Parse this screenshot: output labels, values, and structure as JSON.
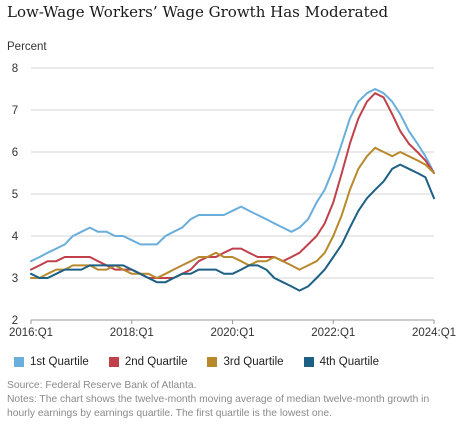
{
  "title": "Low-Wage Workers’ Wage Growth Has Moderated",
  "source": "Source: Federal Reserve Bank of Atlanta.",
  "notes": [
    "Notes: The chart shows the twelve-month moving average of median twelve-month growth in",
    "hourly earnings by earnings quartile. The first quartile is the lowest one."
  ],
  "chart_data": {
    "type": "line",
    "ylabel": "Percent",
    "xlabel": "",
    "ylim": [
      2,
      8
    ],
    "yticks": [
      2,
      3,
      4,
      5,
      6,
      7,
      8
    ],
    "xlim": [
      2016.0,
      2024.0
    ],
    "xtick_labels": [
      "2016:Q1",
      "2018:Q1",
      "2020:Q1",
      "2022:Q1",
      "2024:Q1"
    ],
    "xtick_values": [
      2016.0,
      2018.0,
      2020.0,
      2022.0,
      2024.0
    ],
    "grid": "horizontal",
    "legend_position": "bottom",
    "series": [
      {
        "name": "1st Quartile",
        "color": "#6aaedc",
        "points": [
          [
            2016.0,
            3.4
          ],
          [
            2016.17,
            3.5
          ],
          [
            2016.33,
            3.6
          ],
          [
            2016.5,
            3.7
          ],
          [
            2016.67,
            3.8
          ],
          [
            2016.83,
            4.0
          ],
          [
            2017.0,
            4.1
          ],
          [
            2017.17,
            4.2
          ],
          [
            2017.33,
            4.1
          ],
          [
            2017.5,
            4.1
          ],
          [
            2017.67,
            4.0
          ],
          [
            2017.83,
            4.0
          ],
          [
            2018.0,
            3.9
          ],
          [
            2018.17,
            3.8
          ],
          [
            2018.33,
            3.8
          ],
          [
            2018.5,
            3.8
          ],
          [
            2018.67,
            4.0
          ],
          [
            2018.83,
            4.1
          ],
          [
            2019.0,
            4.2
          ],
          [
            2019.17,
            4.4
          ],
          [
            2019.33,
            4.5
          ],
          [
            2019.5,
            4.5
          ],
          [
            2019.67,
            4.5
          ],
          [
            2019.83,
            4.5
          ],
          [
            2020.0,
            4.6
          ],
          [
            2020.17,
            4.7
          ],
          [
            2020.33,
            4.6
          ],
          [
            2020.5,
            4.5
          ],
          [
            2020.67,
            4.4
          ],
          [
            2020.83,
            4.3
          ],
          [
            2021.0,
            4.2
          ],
          [
            2021.17,
            4.1
          ],
          [
            2021.33,
            4.2
          ],
          [
            2021.5,
            4.4
          ],
          [
            2021.67,
            4.8
          ],
          [
            2021.83,
            5.1
          ],
          [
            2022.0,
            5.6
          ],
          [
            2022.17,
            6.2
          ],
          [
            2022.33,
            6.8
          ],
          [
            2022.5,
            7.2
          ],
          [
            2022.67,
            7.4
          ],
          [
            2022.83,
            7.5
          ],
          [
            2023.0,
            7.4
          ],
          [
            2023.17,
            7.2
          ],
          [
            2023.33,
            6.9
          ],
          [
            2023.5,
            6.5
          ],
          [
            2023.67,
            6.2
          ],
          [
            2023.83,
            5.9
          ],
          [
            2024.0,
            5.5
          ]
        ]
      },
      {
        "name": "2nd Quartile",
        "color": "#c0414a",
        "points": [
          [
            2016.0,
            3.2
          ],
          [
            2016.17,
            3.3
          ],
          [
            2016.33,
            3.4
          ],
          [
            2016.5,
            3.4
          ],
          [
            2016.67,
            3.5
          ],
          [
            2016.83,
            3.5
          ],
          [
            2017.0,
            3.5
          ],
          [
            2017.17,
            3.5
          ],
          [
            2017.33,
            3.4
          ],
          [
            2017.5,
            3.3
          ],
          [
            2017.67,
            3.2
          ],
          [
            2017.83,
            3.2
          ],
          [
            2018.0,
            3.2
          ],
          [
            2018.17,
            3.1
          ],
          [
            2018.33,
            3.0
          ],
          [
            2018.5,
            3.0
          ],
          [
            2018.67,
            3.0
          ],
          [
            2018.83,
            3.0
          ],
          [
            2019.0,
            3.1
          ],
          [
            2019.17,
            3.2
          ],
          [
            2019.33,
            3.4
          ],
          [
            2019.5,
            3.5
          ],
          [
            2019.67,
            3.5
          ],
          [
            2019.83,
            3.6
          ],
          [
            2020.0,
            3.7
          ],
          [
            2020.17,
            3.7
          ],
          [
            2020.33,
            3.6
          ],
          [
            2020.5,
            3.5
          ],
          [
            2020.67,
            3.5
          ],
          [
            2020.83,
            3.5
          ],
          [
            2021.0,
            3.4
          ],
          [
            2021.17,
            3.5
          ],
          [
            2021.33,
            3.6
          ],
          [
            2021.5,
            3.8
          ],
          [
            2021.67,
            4.0
          ],
          [
            2021.83,
            4.3
          ],
          [
            2022.0,
            4.8
          ],
          [
            2022.17,
            5.5
          ],
          [
            2022.33,
            6.2
          ],
          [
            2022.5,
            6.8
          ],
          [
            2022.67,
            7.2
          ],
          [
            2022.83,
            7.4
          ],
          [
            2023.0,
            7.3
          ],
          [
            2023.17,
            6.9
          ],
          [
            2023.33,
            6.5
          ],
          [
            2023.5,
            6.2
          ],
          [
            2023.67,
            6.0
          ],
          [
            2023.83,
            5.8
          ],
          [
            2024.0,
            5.5
          ]
        ]
      },
      {
        "name": "3rd Quartile",
        "color": "#b8892c",
        "points": [
          [
            2016.0,
            3.0
          ],
          [
            2016.17,
            3.0
          ],
          [
            2016.33,
            3.1
          ],
          [
            2016.5,
            3.2
          ],
          [
            2016.67,
            3.2
          ],
          [
            2016.83,
            3.3
          ],
          [
            2017.0,
            3.3
          ],
          [
            2017.17,
            3.3
          ],
          [
            2017.33,
            3.2
          ],
          [
            2017.5,
            3.2
          ],
          [
            2017.67,
            3.3
          ],
          [
            2017.83,
            3.2
          ],
          [
            2018.0,
            3.1
          ],
          [
            2018.17,
            3.1
          ],
          [
            2018.33,
            3.1
          ],
          [
            2018.5,
            3.0
          ],
          [
            2018.67,
            3.1
          ],
          [
            2018.83,
            3.2
          ],
          [
            2019.0,
            3.3
          ],
          [
            2019.17,
            3.4
          ],
          [
            2019.33,
            3.5
          ],
          [
            2019.5,
            3.5
          ],
          [
            2019.67,
            3.6
          ],
          [
            2019.83,
            3.5
          ],
          [
            2020.0,
            3.5
          ],
          [
            2020.17,
            3.4
          ],
          [
            2020.33,
            3.3
          ],
          [
            2020.5,
            3.4
          ],
          [
            2020.67,
            3.4
          ],
          [
            2020.83,
            3.5
          ],
          [
            2021.0,
            3.4
          ],
          [
            2021.17,
            3.3
          ],
          [
            2021.33,
            3.2
          ],
          [
            2021.5,
            3.3
          ],
          [
            2021.67,
            3.4
          ],
          [
            2021.83,
            3.6
          ],
          [
            2022.0,
            4.0
          ],
          [
            2022.17,
            4.5
          ],
          [
            2022.33,
            5.1
          ],
          [
            2022.5,
            5.6
          ],
          [
            2022.67,
            5.9
          ],
          [
            2022.83,
            6.1
          ],
          [
            2023.0,
            6.0
          ],
          [
            2023.17,
            5.9
          ],
          [
            2023.33,
            6.0
          ],
          [
            2023.5,
            5.9
          ],
          [
            2023.67,
            5.8
          ],
          [
            2023.83,
            5.7
          ],
          [
            2024.0,
            5.5
          ]
        ]
      },
      {
        "name": "4th Quartile",
        "color": "#1d5f85",
        "points": [
          [
            2016.0,
            3.1
          ],
          [
            2016.17,
            3.0
          ],
          [
            2016.33,
            3.0
          ],
          [
            2016.5,
            3.1
          ],
          [
            2016.67,
            3.2
          ],
          [
            2016.83,
            3.2
          ],
          [
            2017.0,
            3.2
          ],
          [
            2017.17,
            3.3
          ],
          [
            2017.33,
            3.3
          ],
          [
            2017.5,
            3.3
          ],
          [
            2017.67,
            3.3
          ],
          [
            2017.83,
            3.3
          ],
          [
            2018.0,
            3.2
          ],
          [
            2018.17,
            3.1
          ],
          [
            2018.33,
            3.0
          ],
          [
            2018.5,
            2.9
          ],
          [
            2018.67,
            2.9
          ],
          [
            2018.83,
            3.0
          ],
          [
            2019.0,
            3.1
          ],
          [
            2019.17,
            3.1
          ],
          [
            2019.33,
            3.2
          ],
          [
            2019.5,
            3.2
          ],
          [
            2019.67,
            3.2
          ],
          [
            2019.83,
            3.1
          ],
          [
            2020.0,
            3.1
          ],
          [
            2020.17,
            3.2
          ],
          [
            2020.33,
            3.3
          ],
          [
            2020.5,
            3.3
          ],
          [
            2020.67,
            3.2
          ],
          [
            2020.83,
            3.0
          ],
          [
            2021.0,
            2.9
          ],
          [
            2021.17,
            2.8
          ],
          [
            2021.33,
            2.7
          ],
          [
            2021.5,
            2.8
          ],
          [
            2021.67,
            3.0
          ],
          [
            2021.83,
            3.2
          ],
          [
            2022.0,
            3.5
          ],
          [
            2022.17,
            3.8
          ],
          [
            2022.33,
            4.2
          ],
          [
            2022.5,
            4.6
          ],
          [
            2022.67,
            4.9
          ],
          [
            2022.83,
            5.1
          ],
          [
            2023.0,
            5.3
          ],
          [
            2023.17,
            5.6
          ],
          [
            2023.33,
            5.7
          ],
          [
            2023.5,
            5.6
          ],
          [
            2023.67,
            5.5
          ],
          [
            2023.83,
            5.4
          ],
          [
            2024.0,
            4.9
          ]
        ]
      }
    ]
  }
}
